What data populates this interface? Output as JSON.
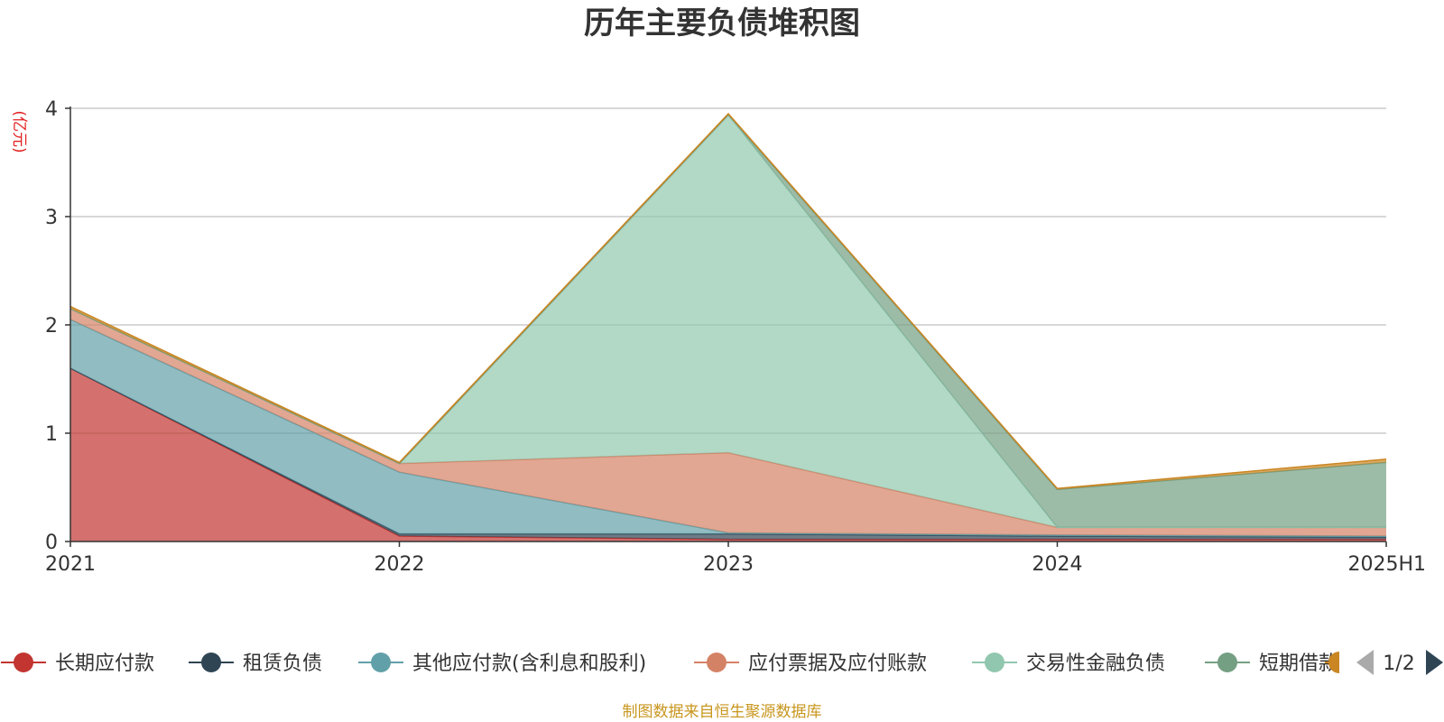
{
  "chart_data": {
    "type": "area",
    "stacked": true,
    "title": "历年主要负债堆积图",
    "unit_label": "(亿元)",
    "categories": [
      "2021",
      "2022",
      "2023",
      "2024",
      "2025H1"
    ],
    "ylim": [
      0,
      4
    ],
    "yticks": [
      0,
      1,
      2,
      3,
      4
    ],
    "grid": true,
    "legend_position": "bottom",
    "series": [
      {
        "name": "长期应付款",
        "color": "#c23531",
        "values": [
          1.6,
          0.05,
          0.02,
          0.02,
          0.02
        ]
      },
      {
        "name": "租赁负债",
        "color": "#2f4554",
        "values": [
          0.0,
          0.02,
          0.05,
          0.03,
          0.02
        ]
      },
      {
        "name": "其他应付款(含利息和股利)",
        "color": "#61a0a8",
        "values": [
          0.45,
          0.57,
          0.01,
          0.01,
          0.01
        ]
      },
      {
        "name": "应付票据及应付账款",
        "color": "#d48265",
        "values": [
          0.1,
          0.08,
          0.74,
          0.07,
          0.08
        ]
      },
      {
        "name": "交易性金融负债",
        "color": "#91c7ae",
        "values": [
          0.0,
          0.0,
          3.12,
          0.0,
          0.0
        ]
      },
      {
        "name": "短期借款",
        "color": "#749f83",
        "values": [
          0.0,
          0.0,
          0.0,
          0.35,
          0.6
        ]
      },
      {
        "name": "",
        "color": "#ca8622",
        "values": [
          0.02,
          0.01,
          0.01,
          0.01,
          0.03
        ]
      }
    ]
  },
  "legend": {
    "page_indicator": "1/2"
  },
  "footer": {
    "source": "制图数据来自恒生聚源数据库"
  }
}
